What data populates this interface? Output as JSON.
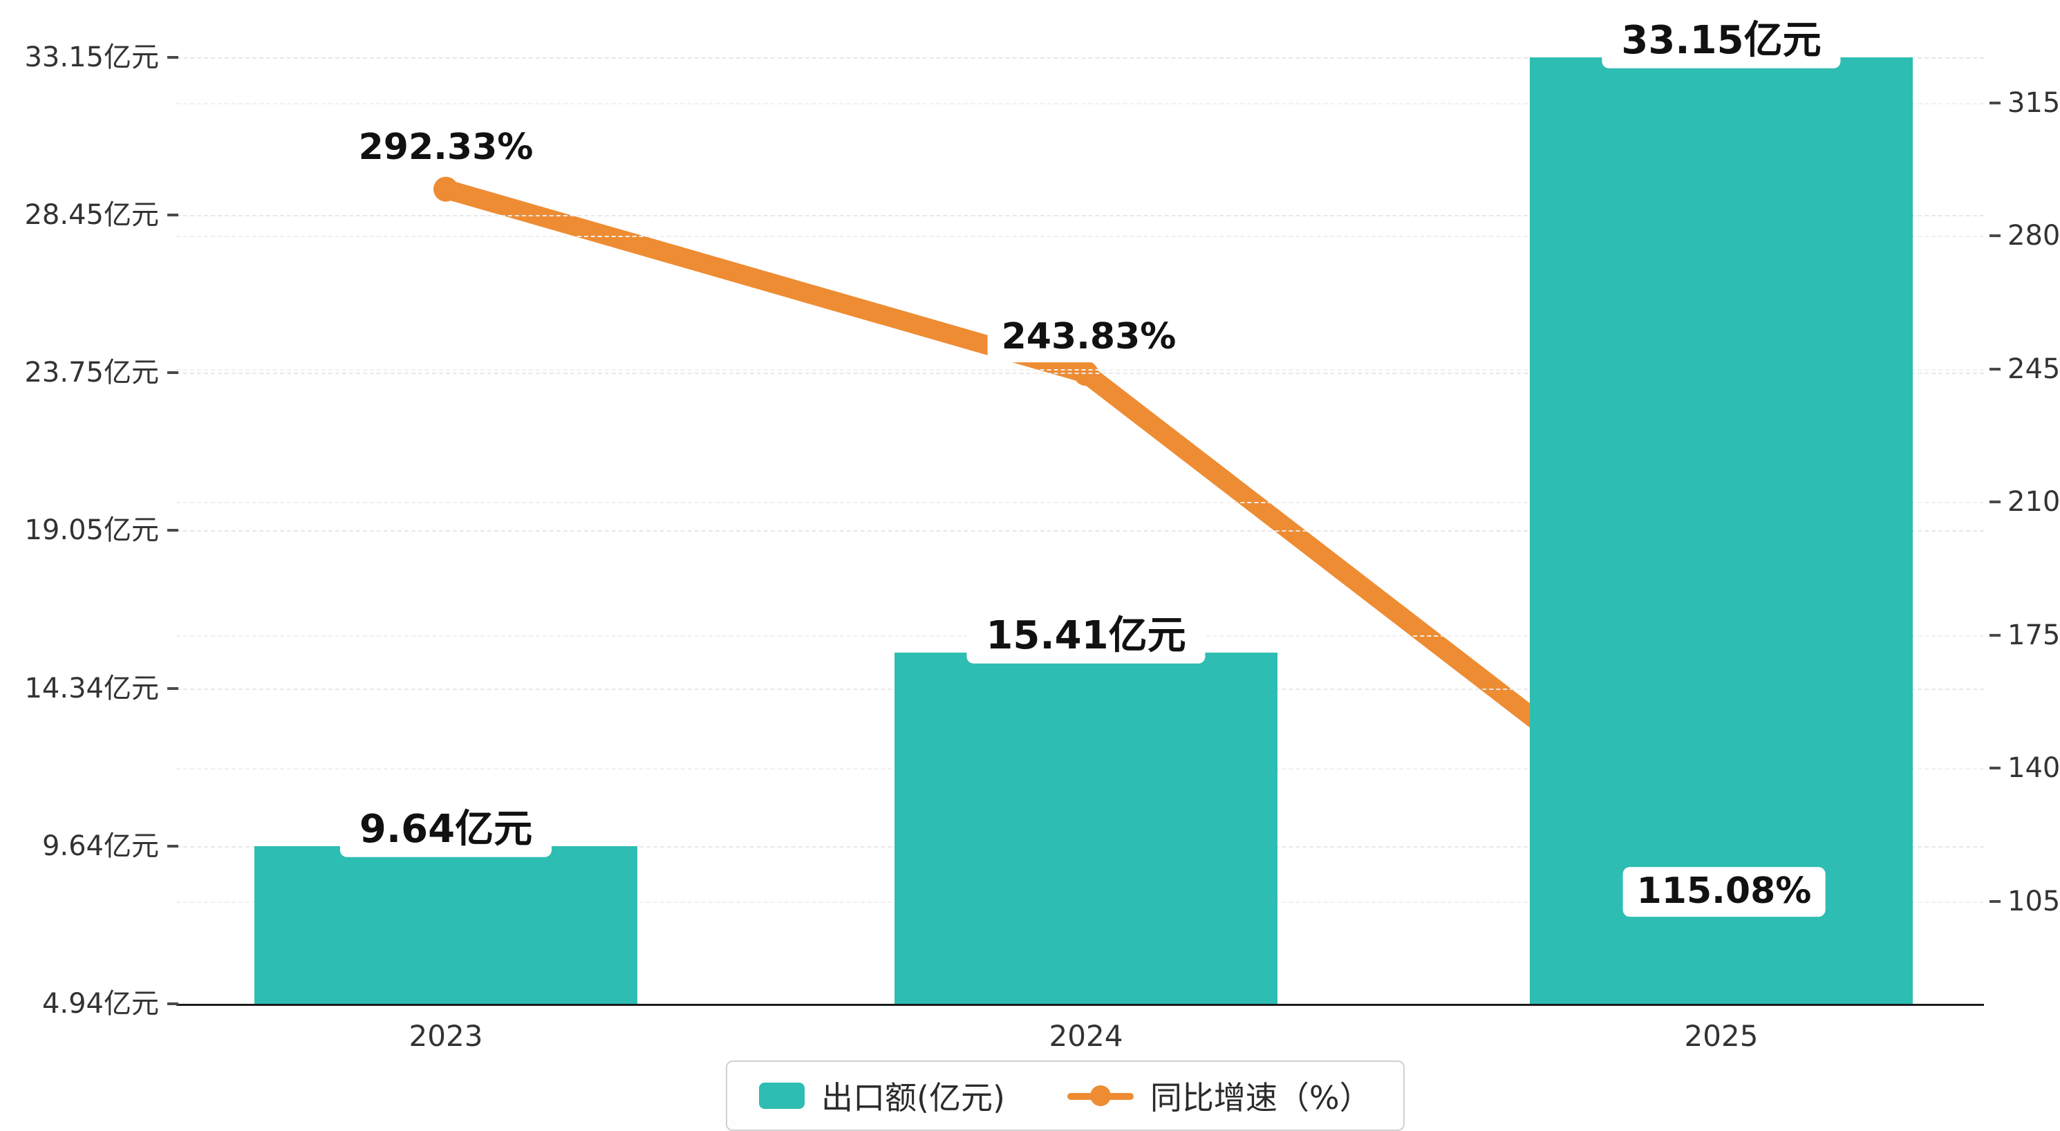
{
  "chart_data": {
    "type": "bar",
    "combo": "bar+line",
    "background": "#ffffff",
    "grid": "dashed-horizontal",
    "categories": [
      "2023",
      "2024",
      "2025"
    ],
    "series": [
      {
        "name": "出口额(亿元)",
        "type": "bar",
        "color": "#2EBDB2",
        "values": [
          9.64,
          15.41,
          33.15
        ],
        "labels": [
          "9.64亿元",
          "15.41亿元",
          "33.15亿元"
        ]
      },
      {
        "name": "同比增速（%）",
        "type": "line",
        "color": "#EE8C33",
        "values": [
          292.33,
          243.83,
          115.08
        ],
        "labels": [
          "292.33%",
          "243.83%",
          "115.08%"
        ]
      }
    ],
    "left_axis": {
      "min": 4.94,
      "max": 33.15,
      "ticks": [
        4.94,
        9.64,
        14.34,
        19.05,
        23.75,
        28.45,
        33.15
      ],
      "tick_labels": [
        "4.94亿元",
        "9.64亿元",
        "14.34亿元",
        "19.05亿元",
        "23.75亿元",
        "28.45亿元",
        "33.15亿元"
      ]
    },
    "right_axis": {
      "min": 78,
      "max": 327,
      "ticks": [
        105,
        140,
        175,
        210,
        245,
        280,
        315
      ],
      "tick_labels": [
        "105",
        "140",
        "175",
        "210",
        "245",
        "280",
        "315"
      ]
    },
    "legend": [
      {
        "label": "出口额(亿元)",
        "type": "bar",
        "color": "#2EBDB2"
      },
      {
        "label": "同比增速（%）",
        "type": "line",
        "color": "#EE8C33"
      }
    ]
  }
}
